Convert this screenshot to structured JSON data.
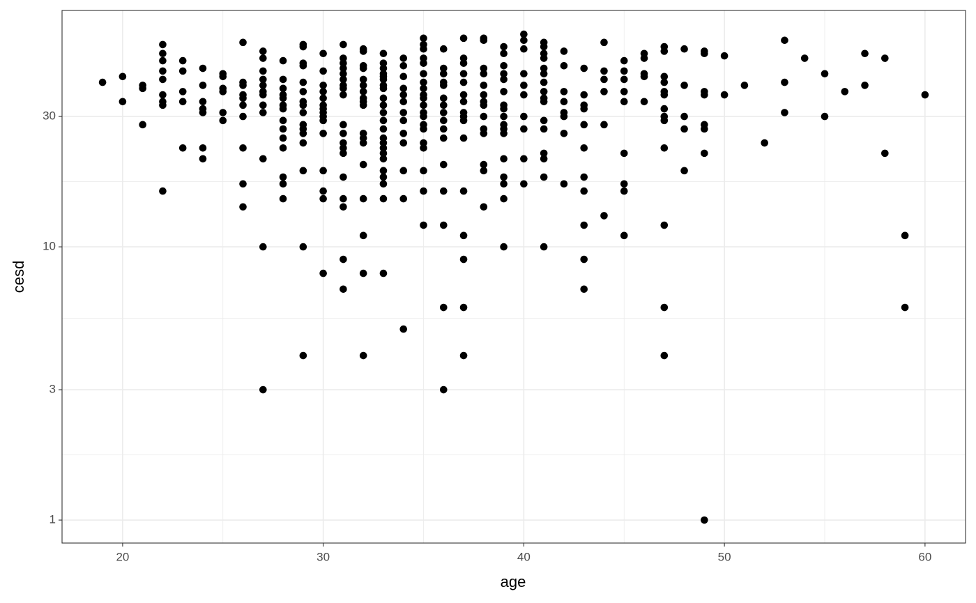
{
  "chart_data": {
    "type": "scatter",
    "xlabel": "age",
    "ylabel": "cesd",
    "color": "#000000",
    "yscale": "log",
    "grid": true,
    "xlim": [
      16.98,
      62.02
    ],
    "ylim": [
      0.824,
      73.3
    ],
    "xticks": [
      20,
      30,
      40,
      50,
      60
    ],
    "yticks": [
      1,
      3,
      10,
      30
    ],
    "x": [
      19,
      20,
      20,
      21,
      21,
      21,
      22,
      22,
      22,
      22,
      22,
      22,
      22,
      22,
      22,
      23,
      23,
      23,
      23,
      23,
      24,
      24,
      24,
      24,
      24,
      24,
      24,
      25,
      25,
      25,
      25,
      25,
      25,
      26,
      26,
      26,
      26,
      26,
      26,
      26,
      26,
      26,
      26,
      27,
      27,
      27,
      27,
      27,
      27,
      27,
      27,
      27,
      27,
      27,
      27,
      28,
      28,
      28,
      28,
      28,
      28,
      28,
      28,
      28,
      28,
      28,
      28,
      28,
      28,
      29,
      29,
      29,
      29,
      29,
      29,
      29,
      29,
      29,
      29,
      29,
      29,
      29,
      29,
      29,
      29,
      30,
      30,
      30,
      30,
      30,
      30,
      30,
      30,
      30,
      30,
      30,
      30,
      30,
      30,
      30,
      31,
      31,
      31,
      31,
      31,
      31,
      31,
      31,
      31,
      31,
      31,
      31,
      31,
      31,
      31,
      31,
      31,
      31,
      31,
      32,
      32,
      32,
      32,
      32,
      32,
      32,
      32,
      32,
      32,
      32,
      32,
      32,
      32,
      32,
      32,
      32,
      32,
      33,
      33,
      33,
      33,
      33,
      33,
      33,
      33,
      33,
      33,
      33,
      33,
      33,
      33,
      33,
      33,
      33,
      33,
      33,
      33,
      33,
      33,
      33,
      34,
      34,
      34,
      34,
      34,
      34,
      34,
      34,
      34,
      34,
      34,
      34,
      34,
      35,
      35,
      35,
      35,
      35,
      35,
      35,
      35,
      35,
      35,
      35,
      35,
      35,
      35,
      35,
      35,
      35,
      35,
      35,
      35,
      36,
      36,
      36,
      36,
      36,
      36,
      36,
      36,
      36,
      36,
      36,
      36,
      36,
      36,
      36,
      36,
      37,
      37,
      37,
      37,
      37,
      37,
      37,
      37,
      37,
      37,
      37,
      37,
      37,
      37,
      37,
      37,
      38,
      38,
      38,
      38,
      38,
      38,
      38,
      38,
      38,
      38,
      38,
      38,
      38,
      38,
      39,
      39,
      39,
      39,
      39,
      39,
      39,
      39,
      39,
      39,
      39,
      39,
      39,
      39,
      39,
      39,
      39,
      40,
      40,
      40,
      40,
      40,
      40,
      40,
      40,
      40,
      40,
      41,
      41,
      41,
      41,
      41,
      41,
      41,
      41,
      41,
      41,
      41,
      41,
      41,
      41,
      41,
      41,
      42,
      42,
      42,
      42,
      42,
      42,
      42,
      42,
      43,
      43,
      43,
      43,
      43,
      43,
      43,
      43,
      43,
      43,
      43,
      44,
      44,
      44,
      44,
      44,
      44,
      45,
      45,
      45,
      45,
      45,
      45,
      45,
      45,
      45,
      46,
      46,
      46,
      46,
      46,
      47,
      47,
      47,
      47,
      47,
      47,
      47,
      47,
      47,
      47,
      47,
      47,
      47,
      48,
      48,
      48,
      48,
      48,
      49,
      49,
      49,
      49,
      49,
      49,
      49,
      49,
      50,
      50,
      51,
      52,
      53,
      53,
      53,
      54,
      55,
      55,
      56,
      57,
      57,
      58,
      58,
      59,
      59,
      60
    ],
    "values": [
      40,
      42,
      34,
      39,
      38,
      28,
      55,
      51,
      48,
      44,
      41,
      36,
      34,
      33,
      16,
      48,
      44,
      37,
      34,
      23,
      45,
      39,
      34,
      32,
      31,
      23,
      21,
      43,
      42,
      38,
      37,
      31,
      29,
      56,
      40,
      39,
      36,
      35,
      33,
      30,
      23,
      17,
      14,
      52,
      49,
      44,
      41,
      39,
      37,
      36,
      33,
      31,
      21,
      10,
      3,
      48,
      41,
      38,
      36,
      35,
      33,
      32,
      29,
      27,
      25,
      23,
      18,
      17,
      15,
      55,
      54,
      47,
      46,
      40,
      37,
      34,
      33,
      31,
      28,
      27,
      26,
      24,
      19,
      10,
      4,
      51,
      44,
      39,
      37,
      35,
      33,
      32,
      31,
      30,
      29,
      26,
      19,
      16,
      15,
      8,
      55,
      49,
      47,
      45,
      43,
      41,
      39,
      38,
      36,
      28,
      26,
      24,
      23,
      22,
      18,
      15,
      14,
      9,
      7,
      53,
      52,
      46,
      45,
      41,
      39,
      37,
      35,
      34,
      33,
      26,
      25,
      24,
      20,
      15,
      11,
      8,
      4,
      51,
      47,
      45,
      43,
      42,
      41,
      39,
      38,
      35,
      33,
      31,
      29,
      27,
      25,
      24,
      23,
      22,
      21,
      19,
      18,
      17,
      15,
      8,
      49,
      46,
      42,
      38,
      36,
      34,
      31,
      29,
      26,
      24,
      19,
      15,
      5,
      58,
      55,
      53,
      49,
      47,
      43,
      40,
      38,
      36,
      35,
      33,
      31,
      30,
      28,
      27,
      24,
      23,
      19,
      16,
      12,
      53,
      45,
      43,
      40,
      39,
      35,
      33,
      31,
      29,
      27,
      25,
      20,
      16,
      12,
      6,
      3,
      58,
      49,
      47,
      43,
      40,
      36,
      34,
      31,
      30,
      29,
      25,
      16,
      11,
      9,
      6,
      4,
      58,
      57,
      45,
      43,
      39,
      36,
      34,
      33,
      30,
      27,
      26,
      20,
      19,
      14,
      54,
      51,
      46,
      43,
      41,
      37,
      33,
      32,
      30,
      28,
      27,
      26,
      21,
      18,
      17,
      15,
      10,
      60,
      57,
      53,
      43,
      39,
      36,
      30,
      27,
      21,
      17,
      56,
      54,
      51,
      49,
      45,
      43,
      40,
      37,
      35,
      34,
      29,
      27,
      22,
      21,
      18,
      10,
      52,
      46,
      37,
      34,
      31,
      30,
      26,
      17,
      45,
      36,
      33,
      32,
      28,
      23,
      18,
      16,
      12,
      9,
      7,
      56,
      44,
      41,
      37,
      28,
      13,
      48,
      44,
      41,
      37,
      34,
      22,
      17,
      16,
      11,
      51,
      49,
      43,
      42,
      34,
      54,
      52,
      42,
      40,
      37,
      36,
      32,
      30,
      29,
      23,
      12,
      6,
      4,
      53,
      39,
      30,
      27,
      19,
      52,
      51,
      37,
      36,
      28,
      27,
      22,
      1,
      50,
      36,
      39,
      24,
      57,
      40,
      31,
      49,
      43,
      30,
      37,
      51,
      39,
      49,
      22,
      11,
      6,
      36
    ]
  }
}
